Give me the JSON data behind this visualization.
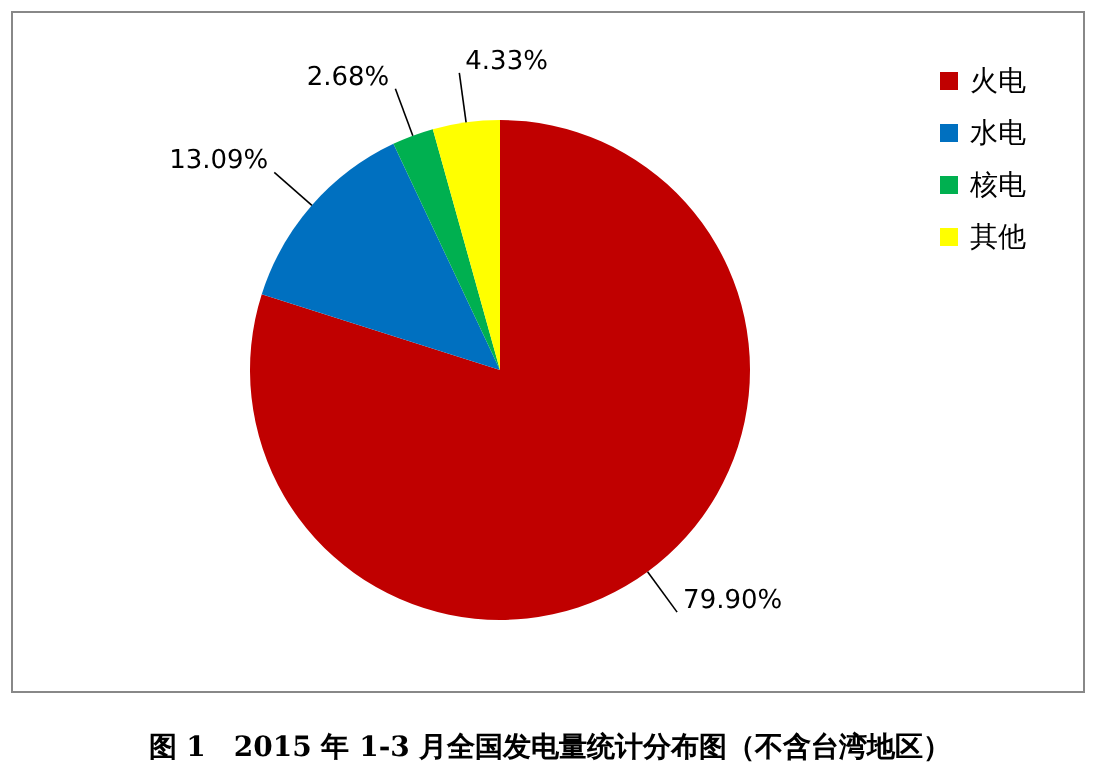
{
  "chart_data": {
    "type": "pie",
    "title": "图 1　2015 年 1-3 月全国发电量统计分布图（不含台湾地区）",
    "categories": [
      "火电",
      "水电",
      "核电",
      "其他"
    ],
    "values": [
      79.9,
      13.09,
      2.68,
      4.33
    ],
    "value_labels": [
      "79.90%",
      "13.09%",
      "2.68%",
      "4.33%"
    ],
    "colors": [
      "#c00000",
      "#0070c0",
      "#00b050",
      "#ffff00"
    ],
    "legend": "right"
  }
}
